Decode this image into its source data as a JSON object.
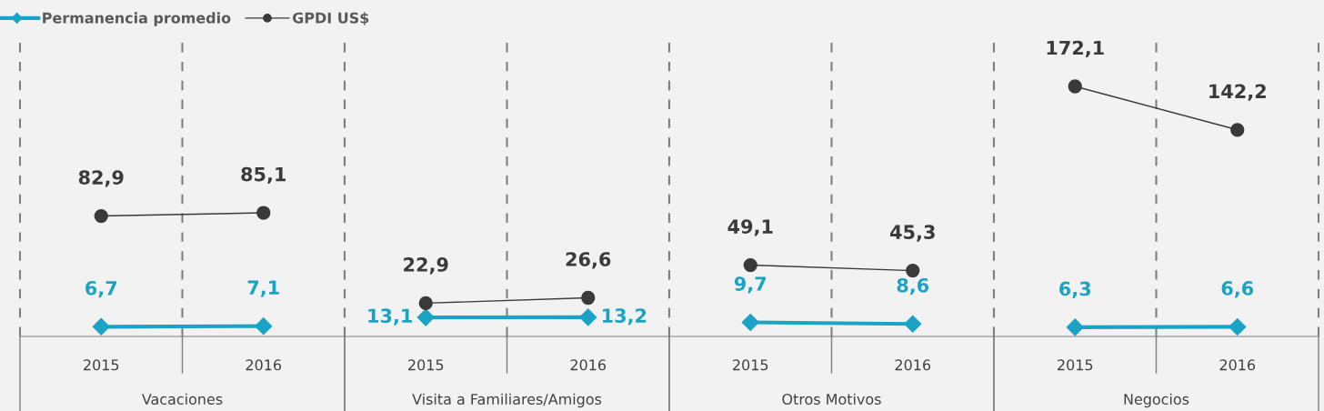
{
  "chart_data": [
    {
      "type": "line",
      "xlabel": "Vacaciones",
      "categories": [
        "2015",
        "2016"
      ],
      "tick_labels": "x",
      "grid": "x",
      "legend": "top",
      "series": [
        {
          "name": "Permanencia promedio",
          "color": "#1ba3c6",
          "marker": "diamond",
          "values": [
            6.7,
            7.1
          ],
          "value_labels": [
            "6,7",
            "7,1"
          ]
        },
        {
          "name": "GPDI US$",
          "color": "#3a3a3a",
          "marker": "circle",
          "values": [
            82.9,
            85.1
          ],
          "value_labels": [
            "82,9",
            "85,1"
          ]
        }
      ]
    },
    {
      "type": "line",
      "xlabel": "Visita a Familiares/Amigos",
      "categories": [
        "2015",
        "2016"
      ],
      "tick_labels": "x",
      "grid": "x",
      "series": [
        {
          "color": "#1ba3c6",
          "marker": "diamond",
          "values": [
            13.1,
            13.2
          ],
          "value_labels": [
            "13,1",
            "13,2"
          ]
        },
        {
          "color": "#3a3a3a",
          "marker": "circle",
          "values": [
            22.9,
            26.6
          ],
          "value_labels": [
            "22,9",
            "26,6"
          ]
        }
      ]
    },
    {
      "type": "line",
      "xlabel": "Otros Motivos",
      "categories": [
        "2015",
        "2016"
      ],
      "tick_labels": "x",
      "grid": "x",
      "series": [
        {
          "color": "#1ba3c6",
          "marker": "diamond",
          "values": [
            9.7,
            8.6
          ],
          "value_labels": [
            "9,7",
            "8,6"
          ]
        },
        {
          "color": "#3a3a3a",
          "marker": "circle",
          "values": [
            49.1,
            45.3
          ],
          "value_labels": [
            "49,1",
            "45,3"
          ]
        }
      ]
    },
    {
      "type": "line",
      "xlabel": "Negocios",
      "categories": [
        "2015",
        "2016"
      ],
      "tick_labels": "x",
      "grid": "x",
      "series": [
        {
          "color": "#1ba3c6",
          "marker": "diamond",
          "values": [
            6.3,
            6.6
          ],
          "value_labels": [
            "6,3",
            "6,6"
          ]
        },
        {
          "color": "#3a3a3a",
          "marker": "circle",
          "values": [
            172.1,
            142.2
          ],
          "value_labels": [
            "172,1",
            "142,2"
          ]
        }
      ]
    }
  ]
}
